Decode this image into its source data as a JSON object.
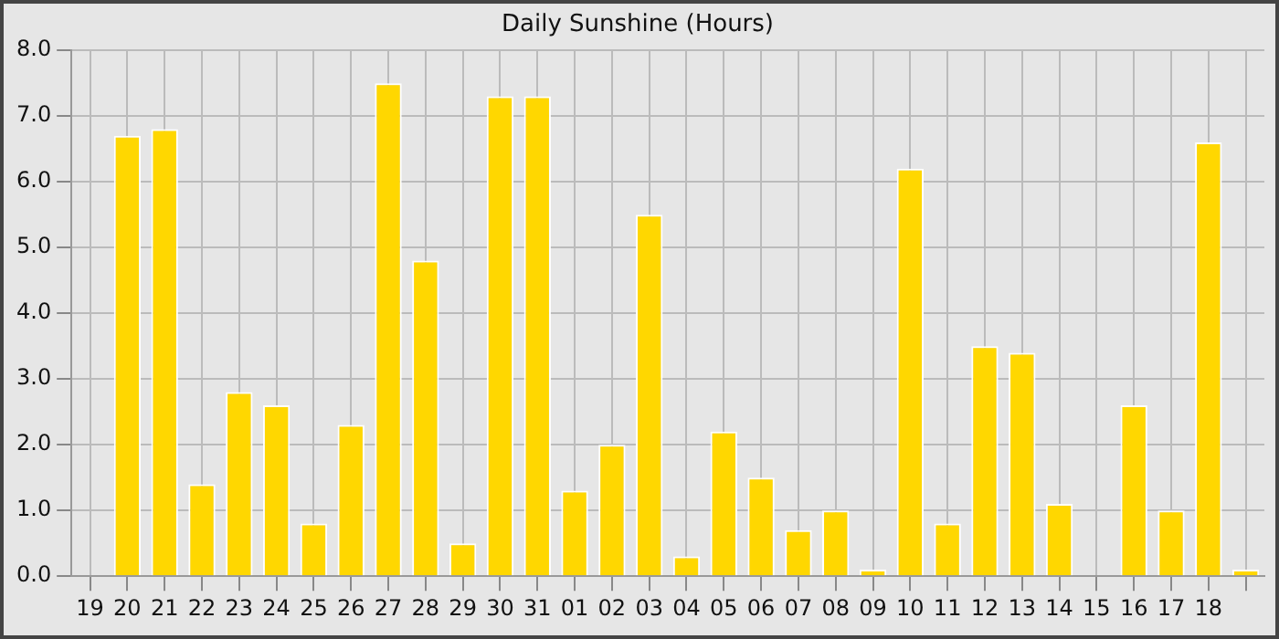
{
  "chart_data": {
    "type": "bar",
    "title": "Daily Sunshine (Hours)",
    "categories": [
      "19",
      "20",
      "21",
      "22",
      "23",
      "24",
      "25",
      "26",
      "27",
      "28",
      "29",
      "30",
      "31",
      "01",
      "02",
      "03",
      "04",
      "05",
      "06",
      "07",
      "08",
      "09",
      "10",
      "11",
      "12",
      "13",
      "14",
      "15",
      "16",
      "17",
      "18",
      null
    ],
    "values": [
      0,
      6.7,
      6.8,
      1.4,
      2.8,
      2.6,
      0.8,
      2.3,
      7.5,
      4.8,
      0.5,
      7.3,
      7.3,
      1.3,
      2.0,
      5.5,
      0.3,
      2.2,
      1.5,
      0.7,
      1.0,
      0.1,
      6.2,
      0.8,
      3.5,
      3.4,
      1.1,
      0,
      2.6,
      1.0,
      6.6,
      0.1
    ],
    "color": "#ffd700",
    "ylim": [
      0,
      8
    ],
    "yticks": [
      {
        "value": 0,
        "label": "0.0"
      },
      {
        "value": 1,
        "label": "1.0"
      },
      {
        "value": 2,
        "label": "2.0"
      },
      {
        "value": 3,
        "label": "3.0"
      },
      {
        "value": 4,
        "label": "4.0"
      },
      {
        "value": 5,
        "label": "5.0"
      },
      {
        "value": 6,
        "label": "6.0"
      },
      {
        "value": 7,
        "label": "7.0"
      },
      {
        "value": 8,
        "label": "8.0"
      }
    ],
    "grid": true
  }
}
